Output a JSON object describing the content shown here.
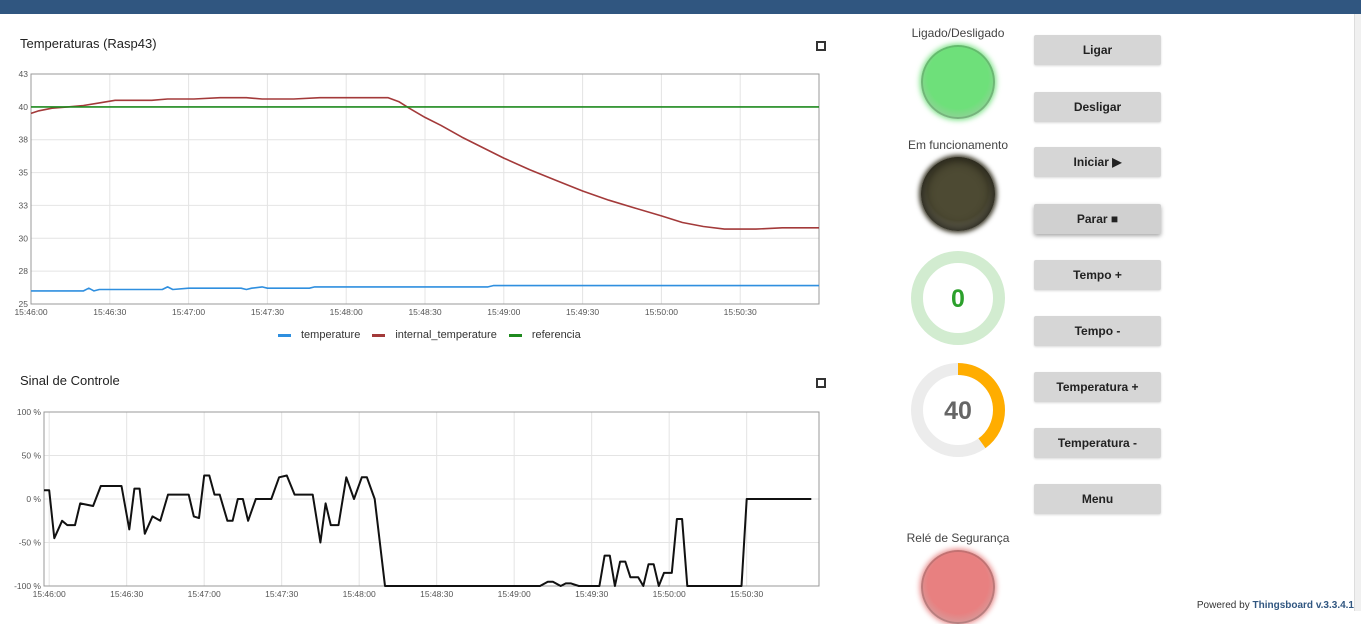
{
  "charts": {
    "temperatures": {
      "title": "Temperaturas (Rasp43)",
      "chart_data": {
        "type": "line",
        "title": "Temperaturas (Rasp43)",
        "y_ticks": [
          "25",
          "28",
          "30",
          "33",
          "35",
          "38",
          "40",
          "43"
        ],
        "y_tick_values": [
          25,
          27.5,
          30,
          32.5,
          35,
          37.5,
          40,
          42.5
        ],
        "ylim": [
          25,
          42.5
        ],
        "x_ticks": [
          "15:46:00",
          "15:46:30",
          "15:47:00",
          "15:47:30",
          "15:48:00",
          "15:48:30",
          "15:49:00",
          "15:49:30",
          "15:50:00",
          "15:50:30"
        ],
        "x_tick_seconds": [
          0,
          30,
          60,
          90,
          120,
          150,
          180,
          210,
          240,
          270
        ],
        "xlim_seconds": [
          0,
          300
        ],
        "legend_position": "bottom",
        "grid": true,
        "series": [
          {
            "name": "temperature",
            "color": "#2f8fdf",
            "points": [
              [
                0,
                26.0
              ],
              [
                20,
                26.0
              ],
              [
                22,
                26.2
              ],
              [
                24,
                26.0
              ],
              [
                26,
                26.1
              ],
              [
                50,
                26.1
              ],
              [
                52,
                26.3
              ],
              [
                54,
                26.1
              ],
              [
                60,
                26.2
              ],
              [
                80,
                26.2
              ],
              [
                82,
                26.1
              ],
              [
                84,
                26.2
              ],
              [
                88,
                26.3
              ],
              [
                90,
                26.2
              ],
              [
                106,
                26.2
              ],
              [
                108,
                26.3
              ],
              [
                174,
                26.3
              ],
              [
                176,
                26.4
              ],
              [
                300,
                26.4
              ]
            ]
          },
          {
            "name": "internal_temperature",
            "color": "#a33a3a",
            "points": [
              [
                0,
                39.5
              ],
              [
                3,
                39.7
              ],
              [
                8,
                39.9
              ],
              [
                14,
                40.0
              ],
              [
                20,
                40.1
              ],
              [
                26,
                40.3
              ],
              [
                32,
                40.5
              ],
              [
                46,
                40.5
              ],
              [
                52,
                40.6
              ],
              [
                62,
                40.6
              ],
              [
                72,
                40.7
              ],
              [
                82,
                40.7
              ],
              [
                88,
                40.6
              ],
              [
                100,
                40.6
              ],
              [
                110,
                40.7
              ],
              [
                120,
                40.7
              ],
              [
                136,
                40.7
              ],
              [
                140,
                40.4
              ],
              [
                144,
                39.9
              ],
              [
                150,
                39.2
              ],
              [
                156,
                38.6
              ],
              [
                164,
                37.7
              ],
              [
                172,
                36.9
              ],
              [
                180,
                36.1
              ],
              [
                190,
                35.2
              ],
              [
                200,
                34.4
              ],
              [
                210,
                33.6
              ],
              [
                220,
                32.9
              ],
              [
                230,
                32.3
              ],
              [
                240,
                31.7
              ],
              [
                248,
                31.2
              ],
              [
                256,
                30.9
              ],
              [
                264,
                30.7
              ],
              [
                276,
                30.7
              ],
              [
                286,
                30.8
              ],
              [
                294,
                30.8
              ],
              [
                300,
                30.8
              ]
            ]
          },
          {
            "name": "referencia",
            "color": "#1f8a1f",
            "points": [
              [
                0,
                40.0
              ],
              [
                300,
                40.0
              ]
            ]
          }
        ]
      }
    },
    "control": {
      "title": "Sinal de Controle",
      "chart_data": {
        "type": "line",
        "title": "Sinal de Controle",
        "y_ticks": [
          "-100 %",
          "-50 %",
          "0 %",
          "50 %",
          "100 %"
        ],
        "y_tick_values": [
          -100,
          -50,
          0,
          50,
          100
        ],
        "ylim": [
          -100,
          100
        ],
        "x_ticks": [
          "15:46:00",
          "15:46:30",
          "15:47:00",
          "15:47:30",
          "15:48:00",
          "15:48:30",
          "15:49:00",
          "15:49:30",
          "15:50:00",
          "15:50:30"
        ],
        "x_tick_seconds": [
          0,
          30,
          60,
          90,
          120,
          150,
          180,
          210,
          240,
          270
        ],
        "xlim_seconds": [
          -2,
          298
        ],
        "grid": true,
        "series": [
          {
            "name": "",
            "color": "#111111",
            "points": [
              [
                -2,
                10
              ],
              [
                0,
                10
              ],
              [
                2,
                -45
              ],
              [
                5,
                -25
              ],
              [
                7,
                -30
              ],
              [
                10,
                -30
              ],
              [
                12,
                -5
              ],
              [
                17,
                -8
              ],
              [
                20,
                15
              ],
              [
                28,
                15
              ],
              [
                31,
                -35
              ],
              [
                33,
                12
              ],
              [
                35,
                12
              ],
              [
                37,
                -40
              ],
              [
                40,
                -20
              ],
              [
                43,
                -25
              ],
              [
                46,
                5
              ],
              [
                54,
                5
              ],
              [
                56,
                -20
              ],
              [
                58,
                -22
              ],
              [
                60,
                27
              ],
              [
                62,
                27
              ],
              [
                64,
                5
              ],
              [
                66,
                5
              ],
              [
                69,
                -25
              ],
              [
                71,
                -25
              ],
              [
                73,
                0
              ],
              [
                75,
                0
              ],
              [
                77,
                -25
              ],
              [
                80,
                0
              ],
              [
                86,
                0
              ],
              [
                89,
                25
              ],
              [
                92,
                27
              ],
              [
                95,
                5
              ],
              [
                102,
                5
              ],
              [
                105,
                -50
              ],
              [
                107,
                -5
              ],
              [
                109,
                -30
              ],
              [
                112,
                -30
              ],
              [
                115,
                25
              ],
              [
                118,
                0
              ],
              [
                121,
                25
              ],
              [
                123,
                25
              ],
              [
                126,
                0
              ],
              [
                130,
                -100
              ],
              [
                190,
                -100
              ],
              [
                193,
                -95
              ],
              [
                195,
                -95
              ],
              [
                198,
                -100
              ],
              [
                200,
                -97
              ],
              [
                202,
                -97
              ],
              [
                205,
                -100
              ],
              [
                213,
                -100
              ],
              [
                215,
                -65
              ],
              [
                217,
                -65
              ],
              [
                219,
                -100
              ],
              [
                221,
                -72
              ],
              [
                223,
                -72
              ],
              [
                225,
                -90
              ],
              [
                228,
                -90
              ],
              [
                230,
                -100
              ],
              [
                232,
                -75
              ],
              [
                234,
                -75
              ],
              [
                236,
                -100
              ],
              [
                238,
                -85
              ],
              [
                241,
                -85
              ],
              [
                243,
                -23
              ],
              [
                245,
                -23
              ],
              [
                247,
                -100
              ],
              [
                268,
                -100
              ],
              [
                270,
                0
              ],
              [
                295,
                0
              ]
            ]
          }
        ]
      }
    }
  },
  "legend": [
    {
      "name": "temperature",
      "color": "#2f8fdf"
    },
    {
      "name": "internal_temperature",
      "color": "#a33a3a"
    },
    {
      "name": "referencia",
      "color": "#1f8a1f"
    }
  ],
  "leds": {
    "ligado": {
      "label": "Ligado/Desligado",
      "color": "#6ee07a",
      "state": "on"
    },
    "funcionamento": {
      "label": "Em funcionamento",
      "color": "#4d4a33",
      "state": "off"
    },
    "rele": {
      "label": "Relé de Segurança",
      "color": "#e88080",
      "state": "on"
    }
  },
  "gauges": {
    "tempo": {
      "value": "0",
      "fraction": 0,
      "color": "#2ca02c",
      "track": "#d2ecd0",
      "text_color": "#2ca02c"
    },
    "temperatura": {
      "value": "40",
      "fraction": 0.4,
      "color": "#ffad00",
      "track": "#ececec",
      "text_color": "#666666"
    }
  },
  "buttons": {
    "ligar": "Ligar",
    "desligar": "Desligar",
    "iniciar": "Iniciar ▶",
    "parar": "Parar ■",
    "tempo_mais": "Tempo +",
    "tempo_menos": "Tempo -",
    "temperatura_mais": "Temperatura +",
    "temperatura_menos": "Temperatura -",
    "menu": "Menu"
  },
  "footer": {
    "prefix": "Powered by",
    "link": "Thingsboard v.3.3.4.1"
  }
}
